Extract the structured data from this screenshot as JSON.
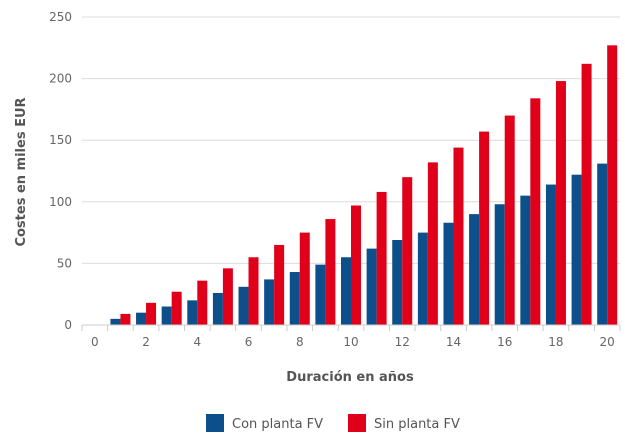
{
  "chart_data": {
    "type": "bar",
    "xlabel": "Duración en años",
    "ylabel": "Costes en miles EUR",
    "ylim": [
      0,
      250
    ],
    "yticks": [
      0,
      50,
      100,
      150,
      200,
      250
    ],
    "xticks": [
      0,
      2,
      4,
      6,
      8,
      10,
      12,
      14,
      16,
      18,
      20
    ],
    "x": [
      1,
      2,
      3,
      4,
      5,
      6,
      7,
      8,
      9,
      10,
      11,
      12,
      13,
      14,
      15,
      16,
      17,
      18,
      19,
      20
    ],
    "grid": true,
    "legend": "bottom-center",
    "series": [
      {
        "name": "Con planta FV",
        "color": "#0d4f8b",
        "values": [
          5,
          10,
          15,
          20,
          26,
          31,
          37,
          43,
          49,
          55,
          62,
          69,
          75,
          83,
          90,
          98,
          105,
          114,
          122,
          131
        ]
      },
      {
        "name": "Sin planta FV",
        "color": "#e0001a",
        "values": [
          9,
          18,
          27,
          36,
          46,
          55,
          65,
          75,
          86,
          97,
          108,
          120,
          132,
          144,
          157,
          170,
          184,
          198,
          212,
          227
        ]
      }
    ]
  }
}
